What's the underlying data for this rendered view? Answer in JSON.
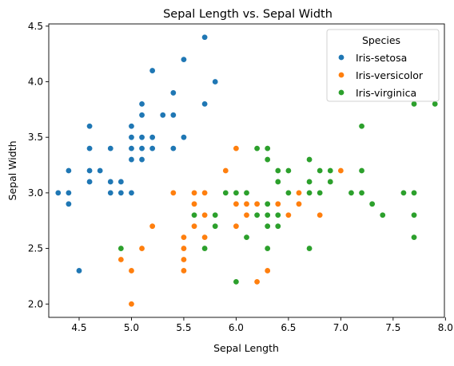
{
  "chart_data": {
    "type": "scatter",
    "title": "Sepal Length vs. Sepal Width",
    "xlabel": "Sepal Length",
    "ylabel": "Sepal Width",
    "xlim": [
      4.21,
      7.99
    ],
    "ylim": [
      1.88,
      4.52
    ],
    "x_ticks": [
      "4.5",
      "5.0",
      "5.5",
      "6.0",
      "6.5",
      "7.0",
      "7.5",
      "8.0"
    ],
    "y_ticks": [
      "2.0",
      "2.5",
      "3.0",
      "3.5",
      "4.0",
      "4.5"
    ],
    "grid": false,
    "legend": {
      "title": "Species",
      "placement": "top-right"
    },
    "series": [
      {
        "name": "Iris-setosa",
        "color": "#1f77b4",
        "points": [
          [
            5.7,
            4.4
          ],
          [
            5.5,
            4.2
          ],
          [
            5.2,
            4.1
          ],
          [
            5.8,
            4.0
          ],
          [
            5.4,
            3.9
          ],
          [
            5.1,
            3.8
          ],
          [
            5.7,
            3.8
          ],
          [
            5.1,
            3.7
          ],
          [
            5.3,
            3.7
          ],
          [
            5.4,
            3.7
          ],
          [
            4.6,
            3.6
          ],
          [
            5.0,
            3.6
          ],
          [
            5.0,
            3.5
          ],
          [
            5.1,
            3.5
          ],
          [
            5.2,
            3.5
          ],
          [
            5.5,
            3.5
          ],
          [
            4.6,
            3.4
          ],
          [
            4.8,
            3.4
          ],
          [
            5.0,
            3.4
          ],
          [
            5.1,
            3.4
          ],
          [
            5.2,
            3.4
          ],
          [
            5.4,
            3.4
          ],
          [
            4.7,
            3.2
          ],
          [
            4.4,
            3.2
          ],
          [
            4.6,
            3.2
          ],
          [
            5.0,
            3.3
          ],
          [
            5.1,
            3.3
          ],
          [
            4.6,
            3.1
          ],
          [
            4.8,
            3.1
          ],
          [
            4.9,
            3.1
          ],
          [
            4.3,
            3.0
          ],
          [
            4.4,
            3.0
          ],
          [
            4.8,
            3.0
          ],
          [
            4.9,
            3.0
          ],
          [
            5.0,
            3.0
          ],
          [
            4.4,
            2.9
          ],
          [
            4.5,
            2.3
          ]
        ]
      },
      {
        "name": "Iris-versicolor",
        "color": "#ff7f0e",
        "points": [
          [
            6.0,
            3.4
          ],
          [
            5.9,
            3.2
          ],
          [
            7.0,
            3.2
          ],
          [
            6.3,
            3.3
          ],
          [
            6.7,
            3.1
          ],
          [
            6.9,
            3.1
          ],
          [
            6.4,
            3.2
          ],
          [
            5.4,
            3.0
          ],
          [
            5.6,
            3.0
          ],
          [
            5.7,
            3.0
          ],
          [
            6.6,
            3.0
          ],
          [
            6.7,
            3.0
          ],
          [
            6.0,
            2.9
          ],
          [
            6.1,
            2.9
          ],
          [
            6.2,
            2.9
          ],
          [
            6.4,
            2.9
          ],
          [
            6.6,
            2.9
          ],
          [
            5.6,
            2.9
          ],
          [
            6.1,
            2.8
          ],
          [
            6.5,
            2.8
          ],
          [
            6.8,
            2.8
          ],
          [
            5.7,
            2.8
          ],
          [
            6.3,
            2.8
          ],
          [
            5.2,
            2.7
          ],
          [
            5.6,
            2.7
          ],
          [
            5.8,
            2.7
          ],
          [
            6.0,
            2.7
          ],
          [
            5.5,
            2.6
          ],
          [
            5.7,
            2.6
          ],
          [
            5.5,
            2.5
          ],
          [
            5.1,
            2.5
          ],
          [
            6.3,
            2.5
          ],
          [
            5.5,
            2.4
          ],
          [
            4.9,
            2.4
          ],
          [
            5.0,
            2.3
          ],
          [
            5.5,
            2.3
          ],
          [
            6.3,
            2.3
          ],
          [
            6.2,
            2.2
          ],
          [
            5.0,
            2.0
          ]
        ]
      },
      {
        "name": "Iris-virginica",
        "color": "#2ca02c",
        "points": [
          [
            7.7,
            3.8
          ],
          [
            7.9,
            3.8
          ],
          [
            7.2,
            3.6
          ],
          [
            6.2,
            3.4
          ],
          [
            6.3,
            3.4
          ],
          [
            6.3,
            3.3
          ],
          [
            6.7,
            3.3
          ],
          [
            6.4,
            3.2
          ],
          [
            6.5,
            3.2
          ],
          [
            6.8,
            3.2
          ],
          [
            6.9,
            3.2
          ],
          [
            7.2,
            3.2
          ],
          [
            6.4,
            3.1
          ],
          [
            6.7,
            3.1
          ],
          [
            6.9,
            3.1
          ],
          [
            5.9,
            3.0
          ],
          [
            6.0,
            3.0
          ],
          [
            6.1,
            3.0
          ],
          [
            6.5,
            3.0
          ],
          [
            6.7,
            3.0
          ],
          [
            6.8,
            3.0
          ],
          [
            7.1,
            3.0
          ],
          [
            7.2,
            3.0
          ],
          [
            7.6,
            3.0
          ],
          [
            7.7,
            3.0
          ],
          [
            6.5,
            3.0
          ],
          [
            6.3,
            2.9
          ],
          [
            7.3,
            2.9
          ],
          [
            5.6,
            2.8
          ],
          [
            5.8,
            2.8
          ],
          [
            6.2,
            2.8
          ],
          [
            6.3,
            2.8
          ],
          [
            6.4,
            2.8
          ],
          [
            7.4,
            2.8
          ],
          [
            7.7,
            2.8
          ],
          [
            5.8,
            2.7
          ],
          [
            6.3,
            2.7
          ],
          [
            6.4,
            2.7
          ],
          [
            6.1,
            2.6
          ],
          [
            7.7,
            2.6
          ],
          [
            4.9,
            2.5
          ],
          [
            5.7,
            2.5
          ],
          [
            6.3,
            2.5
          ],
          [
            6.7,
            2.5
          ],
          [
            6.0,
            2.2
          ]
        ]
      }
    ]
  }
}
